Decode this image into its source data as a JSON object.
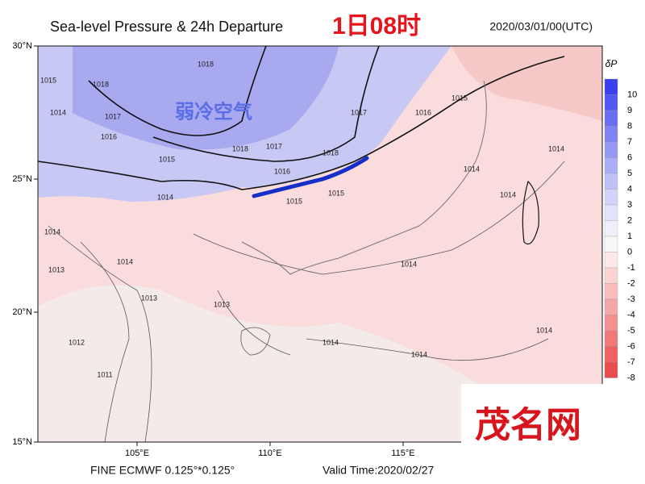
{
  "header": {
    "title": "Sea-level Pressure & 24h Departure",
    "time_label": "1日08时",
    "date": "2020/03/01/00(UTC)"
  },
  "map": {
    "lat_labels": [
      "30°N",
      "25°N",
      "20°N",
      "15°N"
    ],
    "lon_labels": [
      "105°E",
      "110°E",
      "115°E"
    ],
    "annotation": "弱冷空气",
    "contour_labels": [
      "1015",
      "1018",
      "1017",
      "1016",
      "1014",
      "1018",
      "1018",
      "1017",
      "1018",
      "1017",
      "1016",
      "1015",
      "1016",
      "1015",
      "1014",
      "1015",
      "1015",
      "1014",
      "1014",
      "1014",
      "1014",
      "1014",
      "1013",
      "1013",
      "1013",
      "1014",
      "1012",
      "1011",
      "1014",
      "1014",
      "1014"
    ]
  },
  "colorbar": {
    "title": "δP",
    "levels": [
      10,
      9,
      8,
      7,
      6,
      5,
      4,
      3,
      2,
      1,
      0,
      -1,
      -2,
      -3,
      -4,
      -5,
      -6,
      -7,
      -8
    ],
    "colors": [
      "#3a3ff0",
      "#5257f2",
      "#6a6ef3",
      "#8083f5",
      "#9699f6",
      "#abadf8",
      "#bfc1f9",
      "#d2d3fb",
      "#e3e4fc",
      "#f0f0fd",
      "#f7f7f7",
      "#fde8e8",
      "#fbd3d3",
      "#f9bdbd",
      "#f6a6a6",
      "#f39090",
      "#f07979",
      "#ed6363",
      "#ea4d4d"
    ]
  },
  "footer": {
    "source": "FINE ECMWF 0.125°*0.125°",
    "valid": "Valid Time:2020/02/27"
  },
  "watermark": "茂名网"
}
